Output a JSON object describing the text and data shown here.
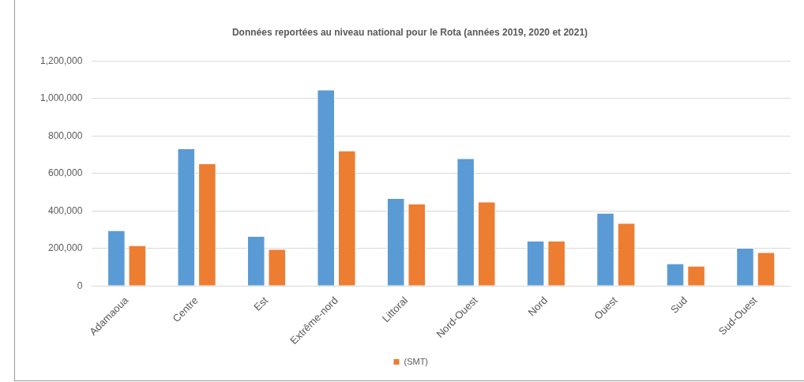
{
  "chart_data": {
    "type": "bar",
    "title": "Données reportées au niveau national pour le Rota (années 2019, 2020 et 2021)",
    "categories": [
      "Adamaoua",
      "Centre",
      "Est",
      "Extrême-nord",
      "Littoral",
      "Nord-Ouest",
      "Nord",
      "Ouest",
      "Sud",
      "Sud-Ouest"
    ],
    "series": [
      {
        "color": "#5b9bd5",
        "values": [
          297000,
          734000,
          266000,
          1047000,
          468000,
          681000,
          241000,
          390000,
          120000,
          203000
        ]
      },
      {
        "name": "(SMT)",
        "color": "#ed7d31",
        "values": [
          217000,
          654000,
          197000,
          722000,
          439000,
          449000,
          241000,
          336000,
          107000,
          180000
        ]
      }
    ],
    "ylim": [
      0,
      1200000
    ],
    "yticks": [
      0,
      {
        "value": 200000,
        "label": "200,000"
      },
      {
        "value": 400000,
        "label": "400,000"
      },
      {
        "value": 600000,
        "label": "600,000"
      },
      {
        "value": 800000,
        "label": "800,000"
      },
      {
        "value": 1000000,
        "label": "1,000,000"
      },
      {
        "value": 1200000,
        "label": "1,200,000"
      }
    ],
    "grid": "y",
    "legend": "bottom"
  }
}
